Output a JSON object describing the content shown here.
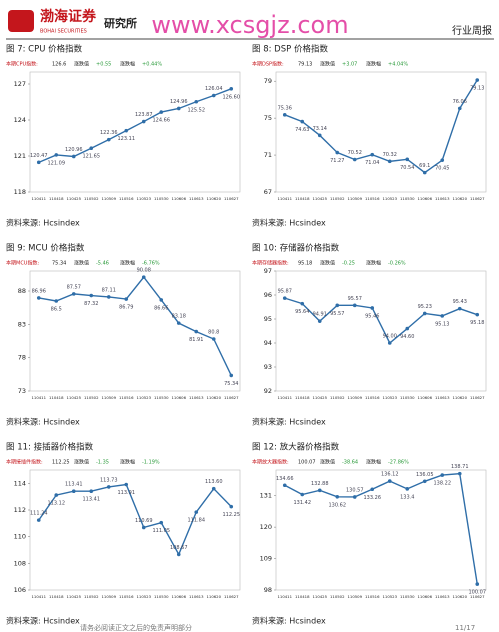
{
  "header": {
    "logo": "渤海证券",
    "logo_en": "BOHAI SECURITIES",
    "dept": "研究所",
    "report_type": "行业周报",
    "watermark": "www.xcsgjz.com"
  },
  "footer": {
    "disclaimer": "请务必阅读正文之后的免责声明部分",
    "page": "11/17"
  },
  "chart_data": [
    {
      "type": "line",
      "title": "图 7: CPU 价格指数",
      "info": {
        "label": "本期CPU指数:",
        "value": "126.6",
        "change_label": "涨跌值",
        "change": "+0.55",
        "pct_label": "涨跌幅",
        "pct": "+0.44%"
      },
      "categories": [
        "110411",
        "110418",
        "110425",
        "110502",
        "110509",
        "110516",
        "110523",
        "110530",
        "110606",
        "110613",
        "110620",
        "110627"
      ],
      "values": [
        120.47,
        121.09,
        120.96,
        121.65,
        122.36,
        123.11,
        123.87,
        124.66,
        124.96,
        125.52,
        126.04,
        126.6
      ],
      "value_labels": [
        "120.47",
        "121.09",
        "120.96",
        "121.65",
        "122.36",
        "123.11",
        "123.87",
        "124.66",
        "124.96",
        "125.52",
        "126.04",
        "126.60"
      ],
      "ylim": [
        118,
        128
      ],
      "yticks": [
        118,
        121,
        124,
        127
      ],
      "color": "#2f6ea8",
      "source": "资料来源: Hcsindex"
    },
    {
      "type": "line",
      "title": "图 8: DSP 价格指数",
      "info": {
        "label": "本期DSP指数:",
        "value": "79.13",
        "change_label": "涨跌值",
        "change": "+3.07",
        "pct_label": "涨跌幅",
        "pct": "+4.04%"
      },
      "categories": [
        "110411",
        "110418",
        "110425",
        "110502",
        "110509",
        "110516",
        "110523",
        "110530",
        "110606",
        "110613",
        "110620",
        "110627"
      ],
      "values": [
        75.36,
        74.63,
        73.14,
        71.27,
        70.52,
        71.04,
        70.32,
        70.54,
        69.1,
        70.45,
        76.06,
        79.13
      ],
      "ylim": [
        67,
        80
      ],
      "yticks": [
        67,
        71,
        75,
        79
      ],
      "color": "#2f6ea8",
      "source": "资料来源: Hcsindex"
    },
    {
      "type": "line",
      "title": "图 9: MCU 价格指数",
      "info": {
        "label": "本期MCU指数:",
        "value": "75.34",
        "change_label": "涨跌值",
        "change": "-5.46",
        "pct_label": "涨跌幅",
        "pct": "-6.76%"
      },
      "categories": [
        "110411",
        "110418",
        "110425",
        "110502",
        "110509",
        "110516",
        "110523",
        "110530",
        "110606",
        "110613",
        "110620",
        "110627"
      ],
      "values": [
        86.96,
        86.5,
        87.57,
        87.32,
        87.11,
        86.79,
        90.08,
        86.66,
        83.18,
        81.91,
        80.8,
        75.34
      ],
      "ylim": [
        73,
        91
      ],
      "yticks": [
        73,
        78,
        83,
        88
      ],
      "color": "#2f6ea8",
      "source": "资料来源: Hcsindex"
    },
    {
      "type": "line",
      "title": "图 10: 存储器价格指数",
      "info": {
        "label": "本期存储器指数:",
        "value": "95.18",
        "change_label": "涨跌值",
        "change": "-0.25",
        "pct_label": "涨跌幅",
        "pct": "-0.26%"
      },
      "categories": [
        "110411",
        "110418",
        "110425",
        "110502",
        "110509",
        "110516",
        "110523",
        "110530",
        "110606",
        "110613",
        "110620",
        "110627"
      ],
      "values": [
        95.87,
        95.64,
        94.91,
        95.57,
        95.57,
        95.46,
        94.0,
        94.6,
        95.23,
        95.13,
        95.43,
        95.18
      ],
      "value_labels": [
        "95.87",
        "95.64",
        "94.91",
        "95.57",
        "95.57",
        "95.46",
        "94.00",
        "94.60",
        "95.23",
        "95.13",
        "95.43",
        "95.18"
      ],
      "ylim": [
        92,
        97
      ],
      "yticks": [
        92,
        93,
        94,
        95,
        96,
        97
      ],
      "color": "#2f6ea8",
      "source": "资料来源: Hcsindex"
    },
    {
      "type": "line",
      "title": "图 11: 接插器价格指数",
      "info": {
        "label": "本期接插件指数:",
        "value": "112.25",
        "change_label": "涨跌值",
        "change": "-1.35",
        "pct_label": "涨跌幅",
        "pct": "-1.19%"
      },
      "categories": [
        "110411",
        "110418",
        "110425",
        "110502",
        "110509",
        "110516",
        "110523",
        "110530",
        "110606",
        "110613",
        "110620",
        "110627"
      ],
      "values": [
        111.24,
        113.12,
        113.41,
        113.41,
        113.73,
        113.91,
        110.69,
        111.05,
        108.67,
        111.84,
        113.6,
        112.25
      ],
      "value_labels": [
        "111.24",
        "113.12",
        "113.41",
        "113.41",
        "113.73",
        "113.91",
        "110.69",
        "111.05",
        "108.67",
        "111.84",
        "113.60",
        "112.25"
      ],
      "ylim": [
        106,
        115
      ],
      "yticks": [
        106,
        108,
        110,
        112,
        114
      ],
      "color": "#2f6ea8",
      "source": "资料来源: Hcsindex"
    },
    {
      "type": "line",
      "title": "图 12: 放大器价格指数",
      "info": {
        "label": "本期放大器指数:",
        "value": "100.07",
        "change_label": "涨跌值",
        "change": "-38.64",
        "pct_label": "涨跌幅",
        "pct": "-27.86%"
      },
      "categories": [
        "110411",
        "110418",
        "110425",
        "110502",
        "110509",
        "110516",
        "110523",
        "110530",
        "110606",
        "110613",
        "110620",
        "110627"
      ],
      "values": [
        134.66,
        131.42,
        132.88,
        130.62,
        130.57,
        133.26,
        136.12,
        133.4,
        136.05,
        138.22,
        138.71,
        100.07
      ],
      "ylim": [
        98,
        140
      ],
      "yticks": [
        98,
        109,
        120,
        131
      ],
      "color": "#2f6ea8",
      "source": "资料来源: Hcsindex"
    }
  ]
}
